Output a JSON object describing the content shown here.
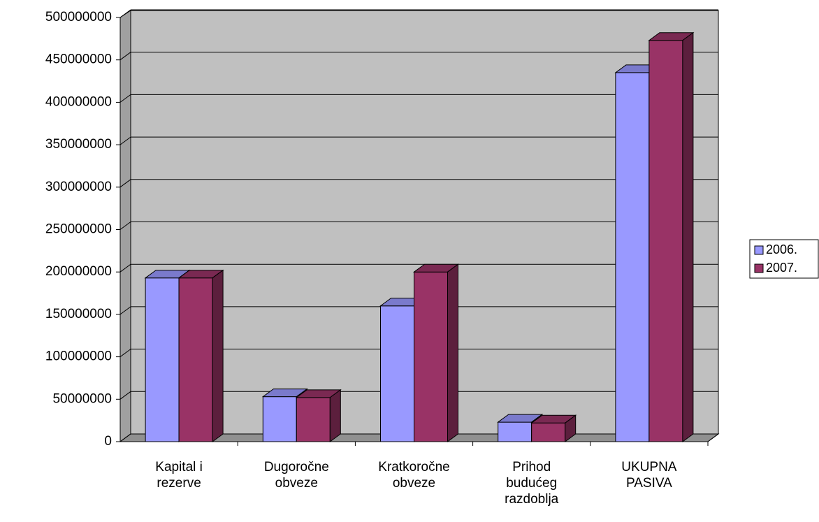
{
  "chart_data": {
    "type": "bar3d",
    "categories": [
      "Kapital i rezerve",
      "Dugoročne obveze",
      "Kratkoročne obveze",
      "Prihod budućeg razdoblja",
      "UKUPNA PASIVA"
    ],
    "series": [
      {
        "name": "2006.",
        "color": "#9999ff",
        "values": [
          193000000,
          53000000,
          160000000,
          23000000,
          435000000
        ]
      },
      {
        "name": "2007.",
        "color": "#993366",
        "values": [
          193000000,
          52000000,
          200000000,
          22000000,
          473000000
        ]
      }
    ],
    "ylim": [
      0,
      500000000
    ],
    "yticks": [
      0,
      50000000,
      100000000,
      150000000,
      200000000,
      250000000,
      300000000,
      350000000,
      400000000,
      450000000,
      500000000
    ],
    "grid": true,
    "legend": "right"
  }
}
